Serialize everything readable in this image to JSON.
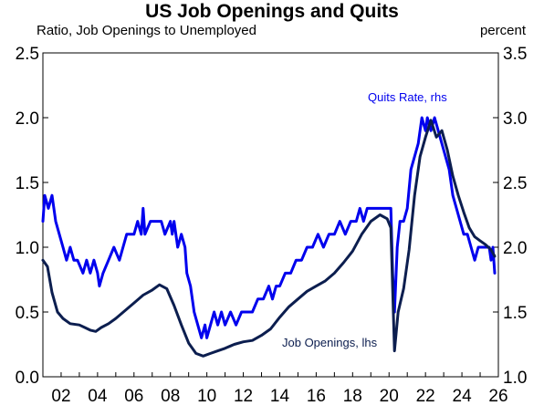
{
  "chart_data": {
    "type": "line",
    "title": "US Job Openings and Quits",
    "subtitle_left": "Ratio, Job Openings to Unemployed",
    "subtitle_right": "percent",
    "grid": false,
    "x_range": [
      2001.0,
      2026.0
    ],
    "x_tick_values": [
      2002,
      2004,
      2006,
      2008,
      2010,
      2012,
      2014,
      2016,
      2018,
      2020,
      2022,
      2024,
      2026
    ],
    "x_tick_labels": [
      "02",
      "04",
      "06",
      "08",
      "10",
      "12",
      "14",
      "16",
      "18",
      "20",
      "22",
      "24",
      "26"
    ],
    "y_left": {
      "range": [
        0.0,
        2.5
      ],
      "ticks": [
        "0.0",
        "0.5",
        "1.0",
        "1.5",
        "2.0",
        "2.5"
      ]
    },
    "y_right": {
      "range": [
        1.0,
        3.5
      ],
      "ticks": [
        "1.0",
        "1.5",
        "2.0",
        "2.5",
        "3.0",
        "3.5"
      ]
    },
    "series": [
      {
        "name": "Quits Rate, rhs",
        "axis": "right",
        "color": "#0000ee",
        "label": "Quits Rate, rhs",
        "points": [
          [
            2001.0,
            2.2
          ],
          [
            2001.1,
            2.4
          ],
          [
            2001.3,
            2.3
          ],
          [
            2001.5,
            2.4
          ],
          [
            2001.7,
            2.2
          ],
          [
            2001.9,
            2.1
          ],
          [
            2002.1,
            2.0
          ],
          [
            2002.3,
            1.9
          ],
          [
            2002.5,
            2.0
          ],
          [
            2002.7,
            1.9
          ],
          [
            2002.9,
            1.9
          ],
          [
            2003.2,
            1.8
          ],
          [
            2003.4,
            1.9
          ],
          [
            2003.6,
            1.8
          ],
          [
            2003.8,
            1.9
          ],
          [
            2004.0,
            1.8
          ],
          [
            2004.1,
            1.7
          ],
          [
            2004.3,
            1.8
          ],
          [
            2004.6,
            1.9
          ],
          [
            2004.9,
            2.0
          ],
          [
            2005.2,
            1.9
          ],
          [
            2005.4,
            2.0
          ],
          [
            2005.6,
            2.1
          ],
          [
            2005.8,
            2.1
          ],
          [
            2006.0,
            2.1
          ],
          [
            2006.2,
            2.2
          ],
          [
            2006.4,
            2.1
          ],
          [
            2006.5,
            2.3
          ],
          [
            2006.6,
            2.1
          ],
          [
            2006.9,
            2.2
          ],
          [
            2007.2,
            2.2
          ],
          [
            2007.5,
            2.2
          ],
          [
            2007.7,
            2.1
          ],
          [
            2008.0,
            2.2
          ],
          [
            2008.1,
            2.1
          ],
          [
            2008.2,
            2.2
          ],
          [
            2008.4,
            2.0
          ],
          [
            2008.6,
            2.1
          ],
          [
            2008.8,
            2.0
          ],
          [
            2008.9,
            1.8
          ],
          [
            2009.1,
            1.7
          ],
          [
            2009.3,
            1.5
          ],
          [
            2009.5,
            1.4
          ],
          [
            2009.7,
            1.3
          ],
          [
            2009.9,
            1.4
          ],
          [
            2010.0,
            1.3
          ],
          [
            2010.2,
            1.4
          ],
          [
            2010.4,
            1.5
          ],
          [
            2010.6,
            1.4
          ],
          [
            2010.8,
            1.5
          ],
          [
            2011.0,
            1.4
          ],
          [
            2011.3,
            1.5
          ],
          [
            2011.6,
            1.4
          ],
          [
            2011.9,
            1.5
          ],
          [
            2012.2,
            1.5
          ],
          [
            2012.5,
            1.5
          ],
          [
            2012.8,
            1.6
          ],
          [
            2013.1,
            1.6
          ],
          [
            2013.4,
            1.7
          ],
          [
            2013.6,
            1.6
          ],
          [
            2013.8,
            1.7
          ],
          [
            2014.0,
            1.7
          ],
          [
            2014.3,
            1.8
          ],
          [
            2014.6,
            1.8
          ],
          [
            2014.9,
            1.9
          ],
          [
            2015.2,
            1.9
          ],
          [
            2015.5,
            2.0
          ],
          [
            2015.8,
            2.0
          ],
          [
            2016.1,
            2.1
          ],
          [
            2016.4,
            2.0
          ],
          [
            2016.7,
            2.1
          ],
          [
            2017.0,
            2.1
          ],
          [
            2017.3,
            2.2
          ],
          [
            2017.6,
            2.1
          ],
          [
            2017.9,
            2.2
          ],
          [
            2018.2,
            2.2
          ],
          [
            2018.4,
            2.3
          ],
          [
            2018.6,
            2.2
          ],
          [
            2018.8,
            2.3
          ],
          [
            2019.0,
            2.3
          ],
          [
            2019.3,
            2.3
          ],
          [
            2019.6,
            2.3
          ],
          [
            2019.9,
            2.3
          ],
          [
            2020.1,
            2.3
          ],
          [
            2020.2,
            1.8
          ],
          [
            2020.3,
            1.5
          ],
          [
            2020.45,
            2.0
          ],
          [
            2020.6,
            2.2
          ],
          [
            2020.8,
            2.2
          ],
          [
            2021.0,
            2.3
          ],
          [
            2021.2,
            2.6
          ],
          [
            2021.4,
            2.7
          ],
          [
            2021.6,
            2.8
          ],
          [
            2021.8,
            3.0
          ],
          [
            2022.0,
            2.9
          ],
          [
            2022.1,
            3.0
          ],
          [
            2022.3,
            2.9
          ],
          [
            2022.5,
            3.0
          ],
          [
            2022.7,
            2.9
          ],
          [
            2022.9,
            2.8
          ],
          [
            2023.1,
            2.7
          ],
          [
            2023.3,
            2.6
          ],
          [
            2023.5,
            2.4
          ],
          [
            2023.7,
            2.3
          ],
          [
            2023.9,
            2.2
          ],
          [
            2024.1,
            2.1
          ],
          [
            2024.3,
            2.1
          ],
          [
            2024.5,
            2.0
          ],
          [
            2024.7,
            1.9
          ],
          [
            2024.9,
            2.0
          ],
          [
            2025.1,
            2.0
          ],
          [
            2025.3,
            2.0
          ],
          [
            2025.5,
            2.0
          ],
          [
            2025.6,
            1.9
          ],
          [
            2025.7,
            2.0
          ],
          [
            2025.8,
            1.8
          ]
        ]
      },
      {
        "name": "Job Openings, lhs",
        "axis": "left",
        "color": "#0c1e4f",
        "label": "Job Openings, lhs",
        "points": [
          [
            2001.0,
            0.9
          ],
          [
            2001.25,
            0.85
          ],
          [
            2001.5,
            0.65
          ],
          [
            2001.8,
            0.5
          ],
          [
            2002.1,
            0.45
          ],
          [
            2002.5,
            0.41
          ],
          [
            2003.0,
            0.4
          ],
          [
            2003.3,
            0.38
          ],
          [
            2003.6,
            0.36
          ],
          [
            2003.9,
            0.35
          ],
          [
            2004.2,
            0.38
          ],
          [
            2004.6,
            0.41
          ],
          [
            2005.0,
            0.45
          ],
          [
            2005.5,
            0.51
          ],
          [
            2006.0,
            0.57
          ],
          [
            2006.5,
            0.63
          ],
          [
            2007.0,
            0.67
          ],
          [
            2007.4,
            0.71
          ],
          [
            2007.8,
            0.68
          ],
          [
            2008.2,
            0.55
          ],
          [
            2008.6,
            0.4
          ],
          [
            2009.0,
            0.26
          ],
          [
            2009.4,
            0.18
          ],
          [
            2009.8,
            0.16
          ],
          [
            2010.2,
            0.18
          ],
          [
            2010.6,
            0.2
          ],
          [
            2011.0,
            0.22
          ],
          [
            2011.5,
            0.25
          ],
          [
            2012.0,
            0.27
          ],
          [
            2012.5,
            0.28
          ],
          [
            2013.0,
            0.32
          ],
          [
            2013.5,
            0.37
          ],
          [
            2014.0,
            0.46
          ],
          [
            2014.5,
            0.54
          ],
          [
            2015.0,
            0.6
          ],
          [
            2015.5,
            0.66
          ],
          [
            2016.0,
            0.7
          ],
          [
            2016.5,
            0.74
          ],
          [
            2017.0,
            0.8
          ],
          [
            2017.5,
            0.88
          ],
          [
            2018.0,
            0.97
          ],
          [
            2018.5,
            1.1
          ],
          [
            2019.0,
            1.2
          ],
          [
            2019.5,
            1.25
          ],
          [
            2019.9,
            1.22
          ],
          [
            2020.1,
            1.15
          ],
          [
            2020.3,
            0.2
          ],
          [
            2020.5,
            0.5
          ],
          [
            2020.8,
            0.68
          ],
          [
            2021.1,
            0.98
          ],
          [
            2021.4,
            1.4
          ],
          [
            2021.7,
            1.7
          ],
          [
            2022.0,
            1.85
          ],
          [
            2022.3,
            1.98
          ],
          [
            2022.6,
            1.85
          ],
          [
            2022.9,
            1.9
          ],
          [
            2023.2,
            1.75
          ],
          [
            2023.5,
            1.55
          ],
          [
            2023.8,
            1.4
          ],
          [
            2024.1,
            1.27
          ],
          [
            2024.4,
            1.15
          ],
          [
            2024.7,
            1.08
          ],
          [
            2025.0,
            1.05
          ],
          [
            2025.3,
            1.02
          ],
          [
            2025.6,
            0.98
          ],
          [
            2025.8,
            0.93
          ]
        ]
      }
    ]
  }
}
